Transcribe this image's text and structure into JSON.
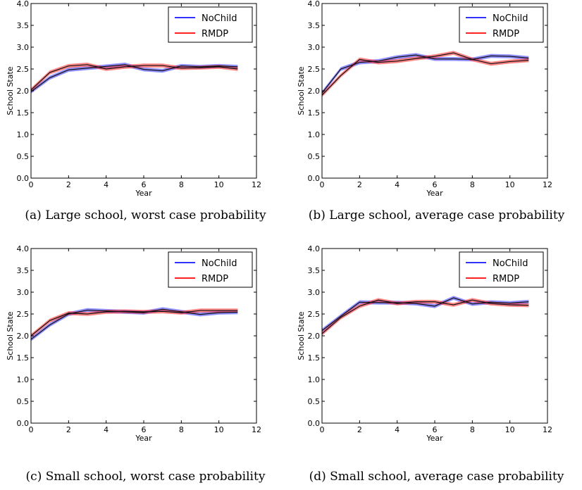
{
  "chart_data": [
    {
      "type": "line",
      "panel": "a",
      "caption": "(a) Large school, worst case probability",
      "xlabel": "Year",
      "ylabel": "School State",
      "xlim": [
        0,
        12
      ],
      "ylim": [
        0,
        4.0
      ],
      "xticks": [
        "0",
        "2",
        "4",
        "6",
        "8",
        "10",
        "12"
      ],
      "yticks": [
        "0.0",
        "0.5",
        "1.0",
        "1.5",
        "2.0",
        "2.5",
        "3.0",
        "3.5",
        "4.0"
      ],
      "legend": "top-right",
      "x": [
        0,
        1,
        2,
        3,
        4,
        5,
        6,
        7,
        8,
        9,
        10,
        11
      ],
      "series": [
        {
          "name": "NoChild",
          "color": "#3333ff",
          "values": [
            1.98,
            2.3,
            2.48,
            2.52,
            2.56,
            2.6,
            2.49,
            2.46,
            2.57,
            2.55,
            2.57,
            2.55
          ]
        },
        {
          "name": "RMDP",
          "color": "#ff2222",
          "values": [
            2.02,
            2.42,
            2.57,
            2.6,
            2.5,
            2.55,
            2.58,
            2.58,
            2.52,
            2.53,
            2.55,
            2.5
          ]
        }
      ]
    },
    {
      "type": "line",
      "panel": "b",
      "caption": "(b) Large school, average case probability",
      "xlabel": "Year",
      "ylabel": "School State",
      "xlim": [
        0,
        12
      ],
      "ylim": [
        0,
        4.0
      ],
      "xticks": [
        "0",
        "2",
        "4",
        "6",
        "8",
        "10",
        "12"
      ],
      "yticks": [
        "0.0",
        "0.5",
        "1.0",
        "1.5",
        "2.0",
        "2.5",
        "3.0",
        "3.5",
        "4.0"
      ],
      "legend": "top-right",
      "x": [
        0,
        1,
        2,
        3,
        4,
        5,
        6,
        7,
        8,
        9,
        10,
        11
      ],
      "series": [
        {
          "name": "NoChild",
          "color": "#3333ff",
          "values": [
            1.95,
            2.5,
            2.65,
            2.68,
            2.77,
            2.82,
            2.73,
            2.73,
            2.72,
            2.8,
            2.79,
            2.75
          ]
        },
        {
          "name": "RMDP",
          "color": "#ff2222",
          "values": [
            1.9,
            2.35,
            2.72,
            2.65,
            2.68,
            2.74,
            2.79,
            2.87,
            2.72,
            2.62,
            2.67,
            2.7
          ]
        }
      ]
    },
    {
      "type": "line",
      "panel": "c",
      "caption": "(c) Small school, worst case probability",
      "xlabel": "Year",
      "ylabel": "School State",
      "xlim": [
        0,
        12
      ],
      "ylim": [
        0,
        4.0
      ],
      "xticks": [
        "0",
        "2",
        "4",
        "6",
        "8",
        "10",
        "12"
      ],
      "yticks": [
        "0.0",
        "0.5",
        "1.0",
        "1.5",
        "2.0",
        "2.5",
        "3.0",
        "3.5",
        "4.0"
      ],
      "legend": "top-right",
      "x": [
        0,
        1,
        2,
        3,
        4,
        5,
        6,
        7,
        8,
        9,
        10,
        11
      ],
      "series": [
        {
          "name": "NoChild",
          "color": "#3333ff",
          "values": [
            1.92,
            2.25,
            2.5,
            2.59,
            2.57,
            2.55,
            2.53,
            2.61,
            2.55,
            2.49,
            2.53,
            2.54
          ]
        },
        {
          "name": "RMDP",
          "color": "#ff2222",
          "values": [
            2.0,
            2.35,
            2.52,
            2.5,
            2.55,
            2.56,
            2.55,
            2.56,
            2.53,
            2.58,
            2.58,
            2.58
          ]
        }
      ]
    },
    {
      "type": "line",
      "panel": "d",
      "caption": "(d) Small school, average case probability",
      "xlabel": "Year",
      "ylabel": "School State",
      "xlim": [
        0,
        12
      ],
      "ylim": [
        0,
        4.0
      ],
      "xticks": [
        "0",
        "2",
        "4",
        "6",
        "8",
        "10",
        "12"
      ],
      "yticks": [
        "0.0",
        "0.5",
        "1.0",
        "1.5",
        "2.0",
        "2.5",
        "3.0",
        "3.5",
        "4.0"
      ],
      "legend": "top-right",
      "x": [
        0,
        1,
        2,
        3,
        4,
        5,
        6,
        7,
        8,
        9,
        10,
        11
      ],
      "series": [
        {
          "name": "NoChild",
          "color": "#3333ff",
          "values": [
            2.12,
            2.45,
            2.77,
            2.76,
            2.76,
            2.74,
            2.68,
            2.87,
            2.73,
            2.77,
            2.75,
            2.78
          ]
        },
        {
          "name": "RMDP",
          "color": "#ff2222",
          "values": [
            2.05,
            2.42,
            2.68,
            2.82,
            2.74,
            2.78,
            2.78,
            2.71,
            2.82,
            2.74,
            2.71,
            2.7
          ]
        }
      ]
    }
  ]
}
